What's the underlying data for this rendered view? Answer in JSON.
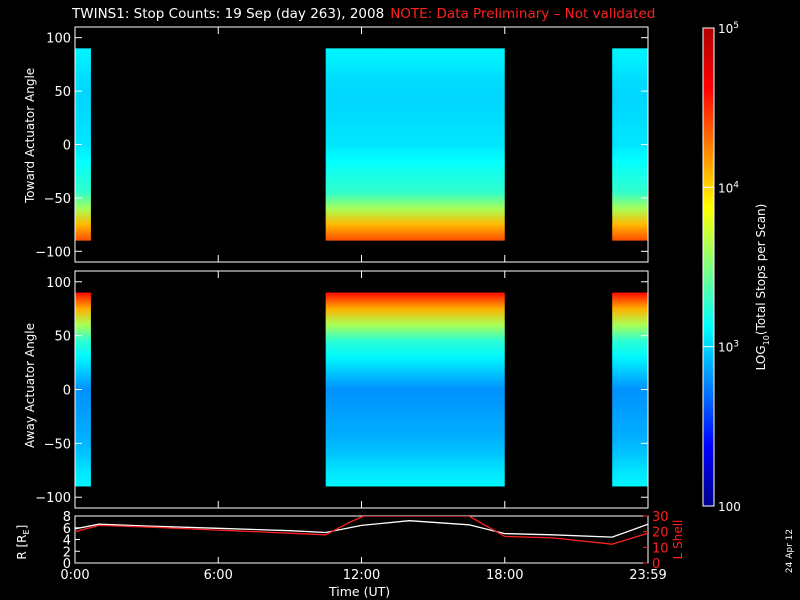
{
  "title": "TWINS1: Stop Counts: 19 Sep (day 263), 2008",
  "note": "NOTE: Data Preliminary – Not validated",
  "footer_date": "24 Apr 12",
  "colors": {
    "background": "#000000",
    "axes": "#ffffff",
    "note": "#ff2020",
    "l_shell": "#ff2020",
    "radius": "#ffffff"
  },
  "chart_data": [
    {
      "type": "heatmap",
      "name": "toward",
      "ylabel": "Toward Actuator Angle",
      "ylim": [
        -110,
        110
      ],
      "yticks": [
        100,
        50,
        0,
        -50,
        -100
      ],
      "xlim_hours": [
        0,
        24
      ],
      "angle_range": [
        -90,
        90
      ],
      "segments": [
        {
          "start": "00:00",
          "end": "00:40"
        },
        {
          "start": "10:30",
          "end": "18:00"
        },
        {
          "start": "22:30",
          "end": "23:59"
        }
      ],
      "color_profile": [
        {
          "angle": 90,
          "log10_counts": 3.1
        },
        {
          "angle": 50,
          "log10_counts": 3.0
        },
        {
          "angle": 0,
          "log10_counts": 3.05
        },
        {
          "angle": -50,
          "log10_counts": 3.3
        },
        {
          "angle": -85,
          "log10_counts": 4.4
        }
      ]
    },
    {
      "type": "heatmap",
      "name": "away",
      "ylabel": "Away Actuator Angle",
      "ylim": [
        -110,
        110
      ],
      "yticks": [
        100,
        50,
        0,
        -50,
        -100
      ],
      "xlim_hours": [
        0,
        24
      ],
      "angle_range": [
        -90,
        90
      ],
      "segments": [
        {
          "start": "00:00",
          "end": "00:40"
        },
        {
          "start": "10:30",
          "end": "18:00"
        },
        {
          "start": "22:30",
          "end": "23:59"
        }
      ],
      "color_profile": [
        {
          "angle": 90,
          "log10_counts": 4.6
        },
        {
          "angle": 50,
          "log10_counts": 3.3
        },
        {
          "angle": 0,
          "log10_counts": 2.8
        },
        {
          "angle": -50,
          "log10_counts": 2.9
        },
        {
          "angle": -85,
          "log10_counts": 3.1
        }
      ]
    },
    {
      "type": "line",
      "name": "orbit",
      "xlabel": "Time (UT)",
      "xticks": [
        "0:00",
        "6:00",
        "12:00",
        "18:00",
        "23:59"
      ],
      "xtick_hours": [
        0,
        6,
        12,
        18,
        24
      ],
      "ylabel_left": "R [R",
      "ylabel_left_sub": "E",
      "ylabel_left_close": "]",
      "ylim_left": [
        0,
        8
      ],
      "yticks_left": [
        0,
        2,
        4,
        6,
        8
      ],
      "ylabel_right": "L Shell",
      "ylim_right": [
        0,
        30
      ],
      "yticks_right": [
        0,
        10,
        20,
        30
      ],
      "series": [
        {
          "axis": "left",
          "x_hours": [
            0,
            1,
            3,
            6,
            9,
            10.5,
            12,
            14,
            16.5,
            18,
            20,
            22.5,
            24
          ],
          "values": [
            5.8,
            6.6,
            6.3,
            5.9,
            5.5,
            5.2,
            6.4,
            7.2,
            6.5,
            5.0,
            4.8,
            4.4,
            6.6
          ]
        },
        {
          "axis": "right",
          "x_hours": [
            0,
            1,
            3,
            6,
            9,
            10.5,
            11.5,
            12.1,
            16.5,
            18,
            20,
            22.5,
            24
          ],
          "values": [
            20,
            24,
            23,
            21,
            19,
            18,
            26,
            30,
            30,
            17,
            16,
            12,
            19
          ]
        }
      ]
    }
  ],
  "colorbar": {
    "label_prefix": "LOG",
    "label_sub": "10",
    "label_suffix": "(Total Stops per Scan)",
    "range_log10": [
      2,
      5
    ],
    "ticks": [
      {
        "value": 5,
        "label": "10",
        "exp": "5"
      },
      {
        "value": 4,
        "label": "10",
        "exp": "4"
      },
      {
        "value": 3,
        "label": "10",
        "exp": "3"
      },
      {
        "value": 2,
        "label": "100",
        "exp": ""
      }
    ],
    "stops": [
      "#00008c",
      "#0000ff",
      "#0080ff",
      "#00ffff",
      "#80ff80",
      "#ffff00",
      "#ff8000",
      "#ff0000",
      "#b00000"
    ]
  }
}
